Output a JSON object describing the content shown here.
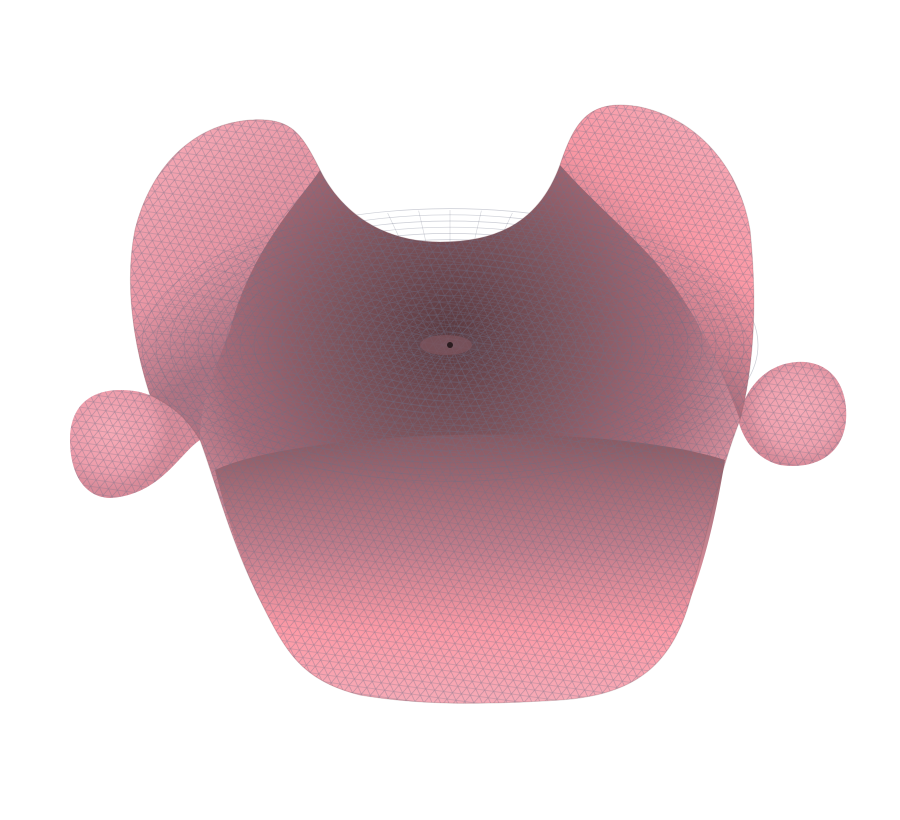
{
  "scene": {
    "object": "triangulated-surface-mesh",
    "colors": {
      "background": "#ffffff",
      "surface_light": "#f7aab6",
      "surface_highlight": "#ff9aa6",
      "surface_mid": "#c98290",
      "surface_shadow": "#7f545c",
      "mesh_line": "#6b6f86"
    }
  }
}
